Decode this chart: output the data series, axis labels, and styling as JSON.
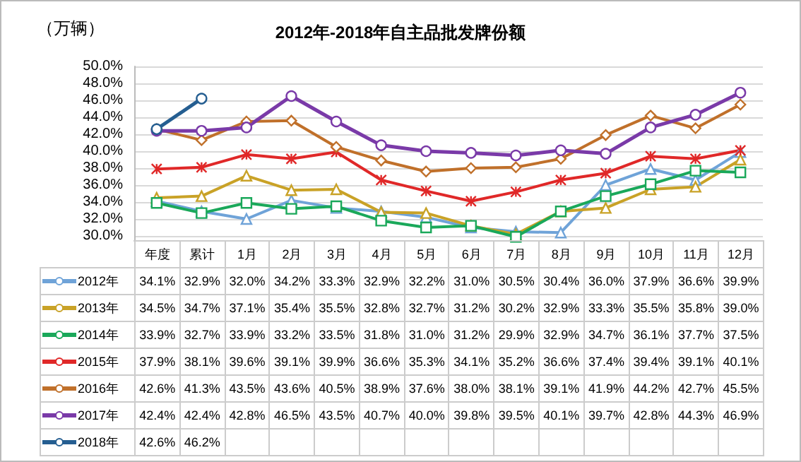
{
  "chart_data": {
    "type": "line",
    "title": "2012年-2018年自主品批发牌份额",
    "ylabel": "（万辆）",
    "categories": [
      "年度",
      "累计",
      "1月",
      "2月",
      "3月",
      "4月",
      "5月",
      "6月",
      "7月",
      "8月",
      "9月",
      "10月",
      "11月",
      "12月"
    ],
    "series": [
      {
        "name": "2012年",
        "color": "#6fa3d8",
        "marker": "triangle",
        "values": [
          34.1,
          32.9,
          32.0,
          34.2,
          33.3,
          32.9,
          32.2,
          31.0,
          30.5,
          30.4,
          36.0,
          37.9,
          36.6,
          39.9
        ],
        "value_labels": [
          "34.1%",
          "32.9%",
          "32.0%",
          "34.2%",
          "33.3%",
          "32.9%",
          "32.2%",
          "31.0%",
          "30.5%",
          "30.4%",
          "36.0%",
          "37.9%",
          "36.6%",
          "39.9%"
        ]
      },
      {
        "name": "2013年",
        "color": "#c9a227",
        "marker": "triangle",
        "values": [
          34.5,
          34.7,
          37.1,
          35.4,
          35.5,
          32.8,
          32.7,
          31.2,
          30.2,
          32.9,
          33.3,
          35.5,
          35.8,
          39.0
        ],
        "value_labels": [
          "34.5%",
          "34.7%",
          "37.1%",
          "35.4%",
          "35.5%",
          "32.8%",
          "32.7%",
          "31.2%",
          "30.2%",
          "32.9%",
          "33.3%",
          "35.5%",
          "35.8%",
          "39.0%"
        ]
      },
      {
        "name": "2014年",
        "color": "#1aa85a",
        "marker": "square",
        "values": [
          33.9,
          32.7,
          33.9,
          33.2,
          33.5,
          31.8,
          31.0,
          31.2,
          29.9,
          32.9,
          34.7,
          36.1,
          37.7,
          37.5
        ],
        "value_labels": [
          "33.9%",
          "32.7%",
          "33.9%",
          "33.2%",
          "33.5%",
          "31.8%",
          "31.0%",
          "31.2%",
          "29.9%",
          "32.9%",
          "34.7%",
          "36.1%",
          "37.7%",
          "37.5%"
        ]
      },
      {
        "name": "2015年",
        "color": "#e02828",
        "marker": "cross",
        "values": [
          37.9,
          38.1,
          39.6,
          39.1,
          39.9,
          36.6,
          35.3,
          34.1,
          35.2,
          36.6,
          37.4,
          39.4,
          39.1,
          40.1
        ],
        "value_labels": [
          "37.9%",
          "38.1%",
          "39.6%",
          "39.1%",
          "39.9%",
          "36.6%",
          "35.3%",
          "34.1%",
          "35.2%",
          "36.6%",
          "37.4%",
          "39.4%",
          "39.1%",
          "40.1%"
        ]
      },
      {
        "name": "2016年",
        "color": "#c0702a",
        "marker": "diamond",
        "values": [
          42.6,
          41.3,
          43.5,
          43.6,
          40.5,
          38.9,
          37.6,
          38.0,
          38.1,
          39.1,
          41.9,
          44.2,
          42.7,
          45.5
        ],
        "value_labels": [
          "42.6%",
          "41.3%",
          "43.5%",
          "43.6%",
          "40.5%",
          "38.9%",
          "37.6%",
          "38.0%",
          "38.1%",
          "39.1%",
          "41.9%",
          "44.2%",
          "42.7%",
          "45.5%"
        ]
      },
      {
        "name": "2017年",
        "color": "#7a3aa8",
        "marker": "circle",
        "values": [
          42.4,
          42.4,
          42.8,
          46.5,
          43.5,
          40.7,
          40.0,
          39.8,
          39.5,
          40.1,
          39.7,
          42.8,
          44.3,
          46.9
        ],
        "value_labels": [
          "42.4%",
          "42.4%",
          "42.8%",
          "46.5%",
          "43.5%",
          "40.7%",
          "40.0%",
          "39.8%",
          "39.5%",
          "40.1%",
          "39.7%",
          "42.8%",
          "44.3%",
          "46.9%"
        ]
      },
      {
        "name": "2018年",
        "color": "#255e91",
        "marker": "circle",
        "values": [
          42.6,
          46.2,
          null,
          null,
          null,
          null,
          null,
          null,
          null,
          null,
          null,
          null,
          null,
          null
        ],
        "value_labels": [
          "42.6%",
          "46.2%",
          null,
          null,
          null,
          null,
          null,
          null,
          null,
          null,
          null,
          null,
          null,
          null
        ]
      }
    ],
    "ylim": [
      29.5,
      50
    ],
    "yticks": [
      {
        "value": 30,
        "label": "30.0%"
      },
      {
        "value": 32,
        "label": "32.0%"
      },
      {
        "value": 34,
        "label": "34.0%"
      },
      {
        "value": 36,
        "label": "36.0%"
      },
      {
        "value": 38,
        "label": "38.0%"
      },
      {
        "value": 40,
        "label": "40.0%"
      },
      {
        "value": 42,
        "label": "42.0%"
      },
      {
        "value": 44,
        "label": "44.0%"
      },
      {
        "value": 46,
        "label": "46.0%"
      },
      {
        "value": 48,
        "label": "48.0%"
      },
      {
        "value": 50,
        "label": "50.0%"
      }
    ],
    "grid": "y",
    "legend": "bottom"
  }
}
